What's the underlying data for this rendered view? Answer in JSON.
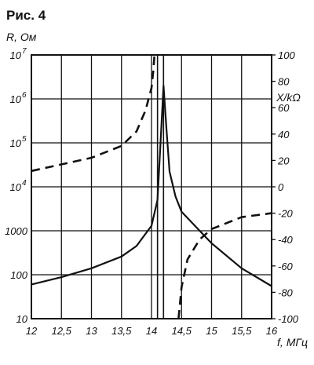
{
  "chart_data": {
    "type": "line",
    "title": "Рис. 4",
    "x": {
      "label": "f, МГц",
      "range": [
        12,
        16
      ],
      "ticks": [
        {
          "v": 12,
          "t": "12"
        },
        {
          "v": 12.5,
          "t": "12,5"
        },
        {
          "v": 13,
          "t": "13"
        },
        {
          "v": 13.5,
          "t": "13,5"
        },
        {
          "v": 14,
          "t": "14"
        },
        {
          "v": 14.5,
          "t": "14,5"
        },
        {
          "v": 15,
          "t": "15"
        },
        {
          "v": 15.5,
          "t": "15,5"
        },
        {
          "v": 16,
          "t": "16"
        }
      ]
    },
    "y_left": {
      "label": "R, Ом",
      "scale": "log",
      "range": [
        10,
        10000000
      ],
      "ticks": [
        {
          "v": 10,
          "base": "10",
          "exp": ""
        },
        {
          "v": 100,
          "base": "100",
          "exp": ""
        },
        {
          "v": 1000,
          "base": "1000",
          "exp": ""
        },
        {
          "v": 10000,
          "base": "10",
          "exp": "4"
        },
        {
          "v": 100000,
          "base": "10",
          "exp": "5"
        },
        {
          "v": 1000000,
          "base": "10",
          "exp": "6"
        },
        {
          "v": 10000000,
          "base": "10",
          "exp": "7"
        }
      ]
    },
    "y_right": {
      "label": "X/kΩ",
      "scale": "linear",
      "range": [
        -100,
        100
      ],
      "ticks": [
        100,
        80,
        60,
        40,
        20,
        0,
        -20,
        -40,
        -60,
        -80,
        -100
      ]
    },
    "grid": true,
    "resonance_lines_x": [
      14.1,
      14.2
    ],
    "series": [
      {
        "id": "R",
        "axis": "left",
        "style": "solid",
        "points": [
          [
            12,
            60
          ],
          [
            12.5,
            88
          ],
          [
            13,
            140
          ],
          [
            13.5,
            260
          ],
          [
            13.75,
            450
          ],
          [
            14,
            1300
          ],
          [
            14.1,
            5000
          ],
          [
            14.15,
            100000
          ],
          [
            14.2,
            2000000
          ],
          [
            14.25,
            200000
          ],
          [
            14.3,
            22000
          ],
          [
            14.4,
            6000
          ],
          [
            14.5,
            2700
          ],
          [
            15,
            520
          ],
          [
            15.5,
            140
          ],
          [
            16,
            55
          ]
        ]
      },
      {
        "id": "X",
        "axis": "right",
        "style": "dashed",
        "segments": [
          [
            [
              12,
              12
            ],
            [
              12.5,
              17
            ],
            [
              13,
              22
            ],
            [
              13.5,
              31
            ],
            [
              13.75,
              42
            ],
            [
              13.9,
              58
            ],
            [
              14,
              75
            ],
            [
              14.03,
              88
            ],
            [
              14.05,
              100
            ]
          ],
          [
            [
              14.45,
              -100
            ],
            [
              14.5,
              -76
            ],
            [
              14.6,
              -55
            ],
            [
              14.8,
              -40
            ],
            [
              15,
              -32
            ],
            [
              15.5,
              -23
            ],
            [
              16,
              -20
            ]
          ]
        ]
      }
    ]
  }
}
